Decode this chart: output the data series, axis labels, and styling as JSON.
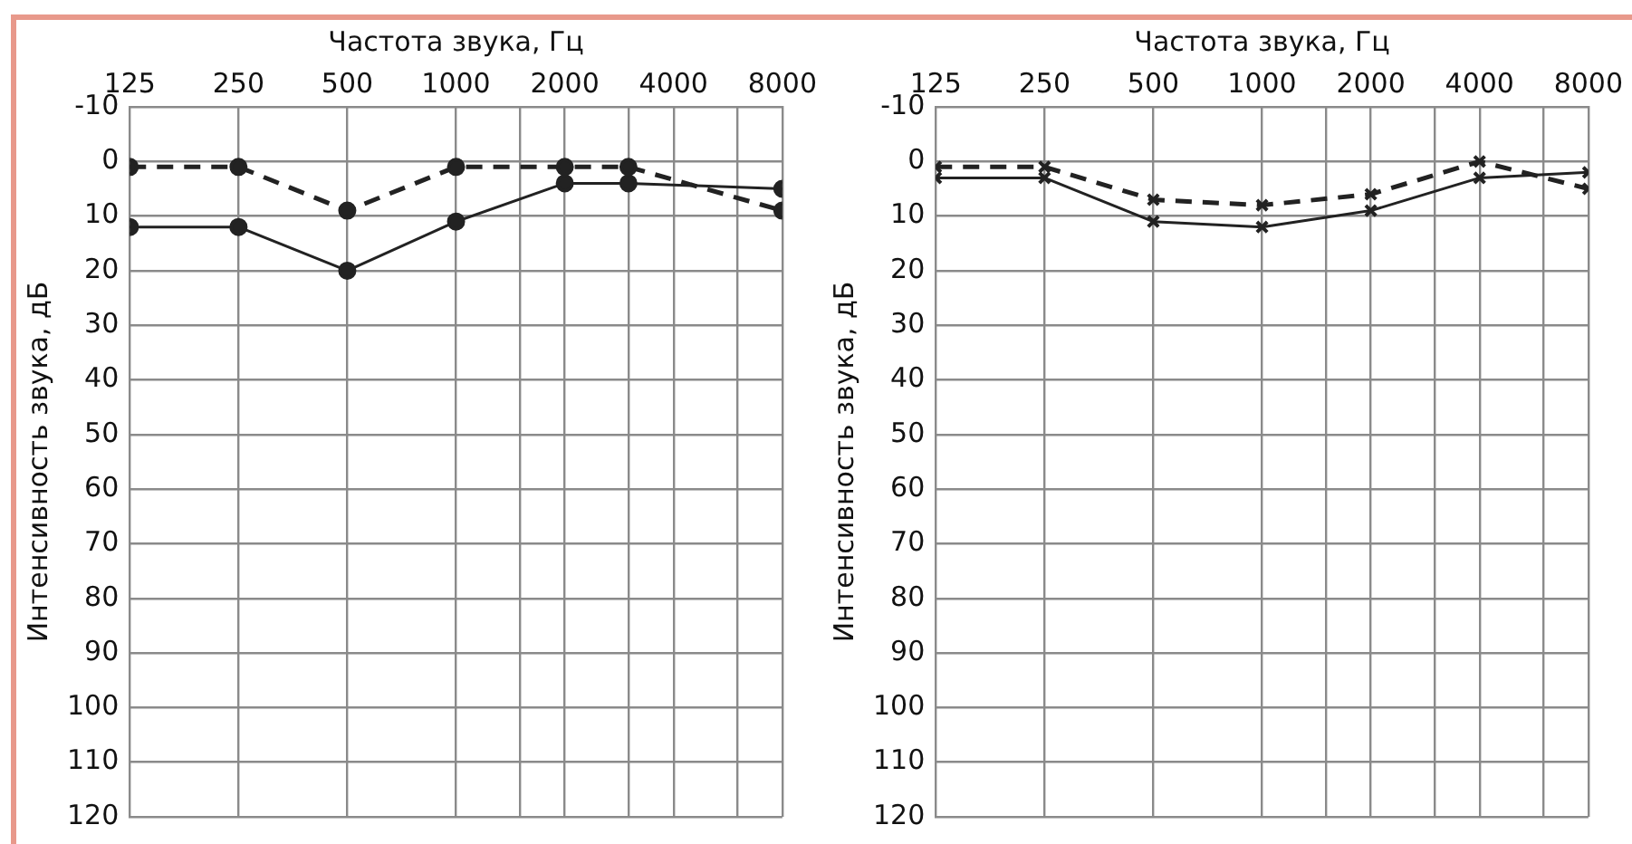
{
  "chart_data": [
    {
      "type": "line",
      "xlabel": "Частота звука, Гц",
      "ylabel": "Интенсивность звука, дБ",
      "x": [
        125,
        250,
        500,
        1000,
        2000,
        3000,
        8000
      ],
      "marker": "circle",
      "grid": true,
      "legend": false,
      "xlim": [
        125,
        8000
      ],
      "xticks": [
        125,
        250,
        500,
        1000,
        {
          "value": 1500,
          "label": null
        },
        2000,
        {
          "value": 3000,
          "label": null
        },
        4000,
        {
          "value": 6000,
          "label": null
        },
        8000
      ],
      "log": "x",
      "ylim": [
        120,
        -10
      ],
      "yticks": [
        -10,
        0,
        10,
        20,
        30,
        40,
        50,
        60,
        70,
        80,
        90,
        100,
        110,
        120
      ],
      "series": [
        {
          "color": "#222222",
          "line_style": "dashed",
          "values": [
            1,
            1,
            9,
            1,
            1,
            1,
            9
          ]
        },
        {
          "color": "#222222",
          "line_style": "solid",
          "values": [
            12,
            12,
            20,
            11,
            4,
            4,
            5
          ]
        }
      ]
    },
    {
      "type": "line",
      "xlabel": "Частота звука, Гц",
      "ylabel": "Интенсивность звука, дБ",
      "x": [
        125,
        250,
        500,
        1000,
        2000,
        4000,
        8000
      ],
      "marker": "cross",
      "grid": true,
      "legend": false,
      "xlim": [
        125,
        8000
      ],
      "xticks": [
        125,
        250,
        500,
        1000,
        {
          "value": 1500,
          "label": null
        },
        2000,
        {
          "value": 3000,
          "label": null
        },
        4000,
        {
          "value": 6000,
          "label": null
        },
        8000
      ],
      "log": "x",
      "ylim": [
        120,
        -10
      ],
      "yticks": [
        -10,
        0,
        10,
        20,
        30,
        40,
        50,
        60,
        70,
        80,
        90,
        100,
        110,
        120
      ],
      "series": [
        {
          "color": "#222222",
          "line_style": "dashed",
          "values": [
            1,
            1,
            7,
            8,
            6,
            0,
            5
          ]
        },
        {
          "color": "#222222",
          "line_style": "solid",
          "values": [
            3,
            3,
            11,
            12,
            9,
            3,
            2
          ]
        }
      ]
    }
  ]
}
